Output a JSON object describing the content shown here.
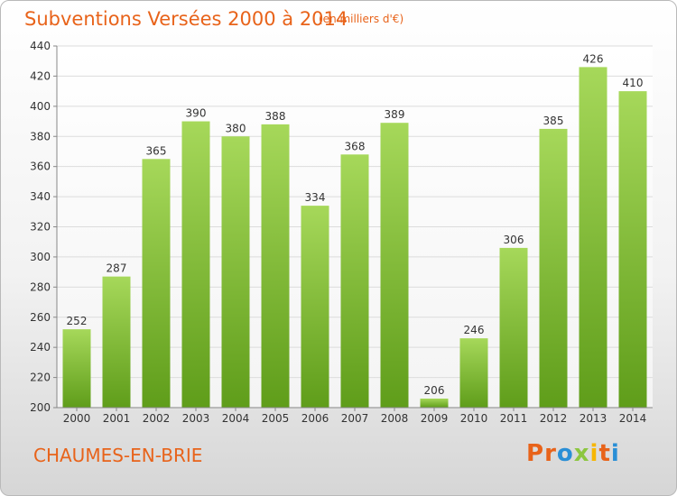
{
  "header": {
    "title": "Subventions Versées 2000 à 2014",
    "unit_note": "(en milliers d'€)"
  },
  "footer": {
    "commune": "CHAUMES-EN-BRIE",
    "logo_letters": [
      "P",
      "r",
      "o",
      "x",
      "i",
      "t",
      "i"
    ],
    "logo_colors": [
      "#e8631a",
      "#e8631a",
      "#2a8fd6",
      "#8cc63f",
      "#f7b600",
      "#e8631a",
      "#2a8fd6"
    ]
  },
  "colors": {
    "bar_top": "#a6d85a",
    "bar_bottom": "#5f9d1a",
    "grid": "#dcdcdc",
    "axis": "#888888",
    "text": "#333333"
  },
  "chart_data": {
    "type": "bar",
    "title": "Subventions Versées 2000 à 2014",
    "subtitle": "(en milliers d'€)",
    "categories": [
      "2000",
      "2001",
      "2002",
      "2003",
      "2004",
      "2005",
      "2006",
      "2007",
      "2008",
      "2009",
      "2010",
      "2011",
      "2012",
      "2013",
      "2014"
    ],
    "values": [
      252,
      287,
      365,
      390,
      380,
      388,
      334,
      368,
      389,
      206,
      246,
      306,
      385,
      426,
      410
    ],
    "ylim": [
      200,
      440
    ],
    "yticks": [
      200,
      220,
      240,
      260,
      280,
      300,
      320,
      340,
      360,
      380,
      400,
      420,
      440
    ],
    "grid": true,
    "data_labels": true,
    "xlabel": "",
    "ylabel": ""
  }
}
